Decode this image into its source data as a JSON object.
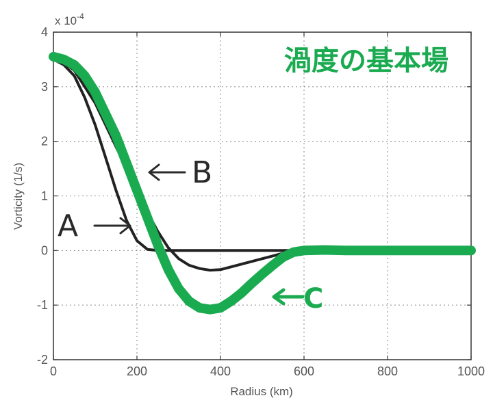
{
  "chart_data": {
    "type": "line",
    "title": "渦度の基本場",
    "xlabel": "Radius (km)",
    "ylabel": "Vorticity (1/s)",
    "y_multiplier": "x 10",
    "y_multiplier_exp": "-4",
    "xlim": [
      0,
      1000
    ],
    "ylim": [
      -2,
      4
    ],
    "xticks": [
      0,
      200,
      400,
      600,
      800,
      1000
    ],
    "yticks": [
      -2,
      -1,
      0,
      1,
      2,
      3,
      4
    ],
    "grid": true,
    "series": [
      {
        "name": "A",
        "color": "#222222",
        "x": [
          0,
          25,
          50,
          75,
          100,
          125,
          150,
          175,
          200,
          225,
          250,
          275,
          300,
          325,
          350,
          400,
          500,
          600
        ],
        "y": [
          3.5,
          3.4,
          3.2,
          2.8,
          2.3,
          1.7,
          1.1,
          0.55,
          0.18,
          0.02,
          0.0,
          0.0,
          0.0,
          0.0,
          0.0,
          0.0,
          0.0,
          0.0
        ]
      },
      {
        "name": "B",
        "color": "#222222",
        "x": [
          0,
          25,
          50,
          75,
          100,
          125,
          150,
          175,
          200,
          225,
          250,
          275,
          300,
          325,
          350,
          375,
          400,
          450,
          500,
          550,
          600
        ],
        "y": [
          3.5,
          3.45,
          3.3,
          3.0,
          2.7,
          2.3,
          1.9,
          1.5,
          1.1,
          0.7,
          0.35,
          0.05,
          -0.15,
          -0.27,
          -0.33,
          -0.36,
          -0.35,
          -0.25,
          -0.15,
          -0.05,
          0.0
        ]
      },
      {
        "name": "C",
        "color": "#1aaa50",
        "x": [
          0,
          25,
          50,
          75,
          100,
          125,
          150,
          175,
          200,
          225,
          250,
          275,
          300,
          325,
          350,
          375,
          400,
          425,
          450,
          475,
          500,
          525,
          550,
          575,
          600,
          650,
          700,
          800,
          1000
        ],
        "y": [
          3.55,
          3.5,
          3.4,
          3.2,
          2.9,
          2.5,
          2.1,
          1.6,
          1.1,
          0.6,
          0.1,
          -0.35,
          -0.7,
          -0.93,
          -1.05,
          -1.08,
          -1.05,
          -0.93,
          -0.78,
          -0.6,
          -0.43,
          -0.27,
          -0.12,
          -0.03,
          0.0,
          0.01,
          0.0,
          0.0,
          0.0
        ]
      }
    ],
    "annotations": [
      {
        "text": "A",
        "arrow": "→"
      },
      {
        "text": "B",
        "arrow": "←"
      },
      {
        "text": "C",
        "arrow": "←"
      }
    ]
  }
}
